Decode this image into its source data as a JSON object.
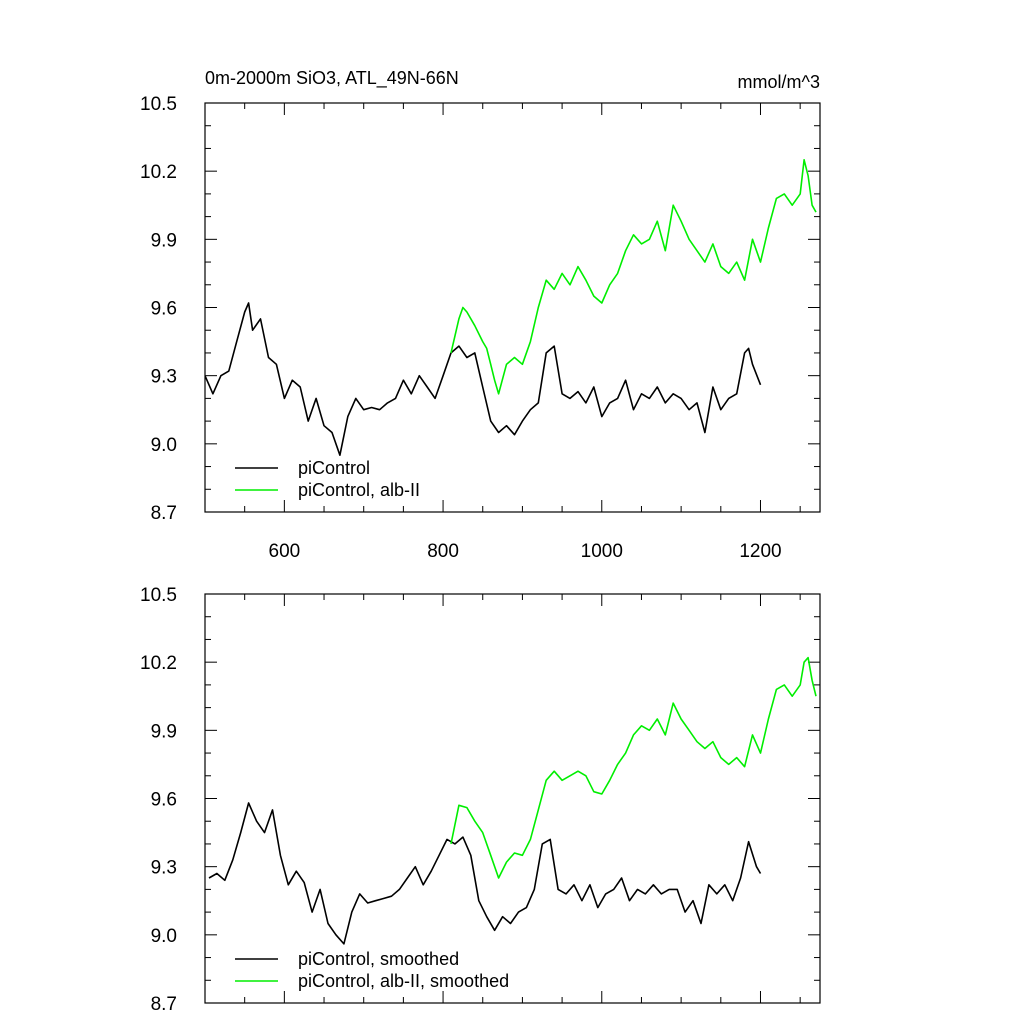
{
  "chart_data": [
    {
      "type": "line",
      "title": "0m-2000m SiO3, ATL_49N-66N",
      "units": "mmol/m^3",
      "xlim": [
        500,
        1275
      ],
      "ylim": [
        8.7,
        10.5
      ],
      "x_ticks": [
        600,
        800,
        1000,
        1200
      ],
      "x_tick_labels": [
        "600",
        "800",
        "1000",
        "1200"
      ],
      "y_ticks": [
        8.7,
        9.0,
        9.3,
        9.6,
        9.9,
        10.2,
        10.5
      ],
      "y_tick_labels": [
        "8.7",
        "9.0",
        "9.3",
        "9.6",
        "9.9",
        "10.2",
        "10.5"
      ],
      "legend_position": "bottom-left",
      "series": [
        {
          "name": "piControl",
          "color": "#000000",
          "x": [
            500,
            510,
            520,
            530,
            540,
            550,
            555,
            560,
            570,
            580,
            590,
            600,
            610,
            620,
            630,
            640,
            650,
            660,
            670,
            680,
            690,
            700,
            710,
            720,
            730,
            740,
            750,
            760,
            770,
            780,
            790,
            800,
            810,
            820,
            830,
            840,
            850,
            860,
            870,
            880,
            890,
            900,
            910,
            920,
            930,
            940,
            950,
            960,
            970,
            980,
            990,
            1000,
            1010,
            1020,
            1030,
            1040,
            1050,
            1060,
            1070,
            1080,
            1090,
            1100,
            1110,
            1120,
            1130,
            1140,
            1150,
            1160,
            1170,
            1180,
            1185,
            1190,
            1200
          ],
          "values": [
            9.3,
            9.22,
            9.3,
            9.32,
            9.45,
            9.58,
            9.62,
            9.5,
            9.55,
            9.38,
            9.35,
            9.2,
            9.28,
            9.25,
            9.1,
            9.2,
            9.08,
            9.05,
            8.95,
            9.12,
            9.2,
            9.15,
            9.16,
            9.15,
            9.18,
            9.2,
            9.28,
            9.22,
            9.3,
            9.25,
            9.2,
            9.3,
            9.4,
            9.43,
            9.38,
            9.4,
            9.25,
            9.1,
            9.05,
            9.08,
            9.04,
            9.1,
            9.15,
            9.18,
            9.4,
            9.43,
            9.22,
            9.2,
            9.23,
            9.18,
            9.25,
            9.12,
            9.18,
            9.2,
            9.28,
            9.15,
            9.22,
            9.2,
            9.25,
            9.18,
            9.22,
            9.2,
            9.15,
            9.18,
            9.05,
            9.25,
            9.15,
            9.2,
            9.22,
            9.4,
            9.42,
            9.35,
            9.26
          ]
        },
        {
          "name": "piControl, alb-II",
          "color": "#00ee00",
          "x": [
            810,
            820,
            825,
            830,
            840,
            850,
            855,
            860,
            865,
            870,
            880,
            890,
            900,
            910,
            920,
            930,
            940,
            950,
            960,
            970,
            980,
            990,
            1000,
            1010,
            1020,
            1030,
            1040,
            1050,
            1060,
            1070,
            1080,
            1090,
            1100,
            1110,
            1120,
            1130,
            1140,
            1150,
            1160,
            1170,
            1180,
            1190,
            1200,
            1210,
            1220,
            1230,
            1240,
            1250,
            1255,
            1260,
            1265,
            1270
          ],
          "values": [
            9.4,
            9.55,
            9.6,
            9.58,
            9.52,
            9.45,
            9.42,
            9.35,
            9.28,
            9.22,
            9.35,
            9.38,
            9.35,
            9.45,
            9.6,
            9.72,
            9.68,
            9.75,
            9.7,
            9.78,
            9.72,
            9.65,
            9.62,
            9.7,
            9.75,
            9.85,
            9.92,
            9.88,
            9.9,
            9.98,
            9.85,
            10.05,
            9.98,
            9.9,
            9.85,
            9.8,
            9.88,
            9.78,
            9.75,
            9.8,
            9.72,
            9.9,
            9.8,
            9.95,
            10.08,
            10.1,
            10.05,
            10.1,
            10.25,
            10.18,
            10.05,
            10.02
          ]
        }
      ]
    },
    {
      "type": "line",
      "xlim": [
        500,
        1275
      ],
      "ylim": [
        8.7,
        10.5
      ],
      "x_ticks": [
        600,
        800,
        1000,
        1200
      ],
      "y_ticks": [
        8.7,
        9.0,
        9.3,
        9.6,
        9.9,
        10.2,
        10.5
      ],
      "y_tick_labels": [
        "8.7",
        "9.0",
        "9.3",
        "9.6",
        "9.9",
        "10.2",
        "10.5"
      ],
      "legend_position": "bottom-left",
      "series": [
        {
          "name": "piControl, smoothed",
          "color": "#000000",
          "x": [
            505,
            515,
            525,
            535,
            545,
            555,
            565,
            575,
            585,
            595,
            605,
            615,
            625,
            635,
            645,
            655,
            665,
            675,
            685,
            695,
            705,
            715,
            725,
            735,
            745,
            755,
            765,
            775,
            785,
            795,
            805,
            815,
            825,
            835,
            845,
            855,
            865,
            875,
            885,
            895,
            905,
            915,
            925,
            935,
            945,
            955,
            965,
            975,
            985,
            995,
            1005,
            1015,
            1025,
            1035,
            1045,
            1055,
            1065,
            1075,
            1085,
            1095,
            1105,
            1115,
            1125,
            1135,
            1145,
            1155,
            1165,
            1175,
            1185,
            1195,
            1200
          ],
          "values": [
            9.25,
            9.27,
            9.24,
            9.33,
            9.45,
            9.58,
            9.5,
            9.45,
            9.55,
            9.35,
            9.22,
            9.28,
            9.23,
            9.1,
            9.2,
            9.05,
            9.0,
            8.96,
            9.1,
            9.18,
            9.14,
            9.15,
            9.16,
            9.17,
            9.2,
            9.25,
            9.3,
            9.22,
            9.28,
            9.35,
            9.42,
            9.4,
            9.43,
            9.35,
            9.15,
            9.08,
            9.02,
            9.08,
            9.05,
            9.1,
            9.12,
            9.2,
            9.4,
            9.42,
            9.2,
            9.18,
            9.22,
            9.15,
            9.22,
            9.12,
            9.18,
            9.2,
            9.25,
            9.15,
            9.2,
            9.18,
            9.22,
            9.18,
            9.2,
            9.2,
            9.1,
            9.15,
            9.05,
            9.22,
            9.18,
            9.22,
            9.15,
            9.25,
            9.41,
            9.3,
            9.27
          ]
        },
        {
          "name": "piControl, alb-II, smoothed",
          "color": "#00ee00",
          "x": [
            810,
            820,
            830,
            840,
            850,
            860,
            870,
            880,
            890,
            900,
            910,
            920,
            930,
            940,
            950,
            960,
            970,
            980,
            990,
            1000,
            1010,
            1020,
            1030,
            1040,
            1050,
            1060,
            1070,
            1080,
            1090,
            1100,
            1110,
            1120,
            1130,
            1140,
            1150,
            1160,
            1170,
            1180,
            1190,
            1200,
            1210,
            1220,
            1230,
            1240,
            1250,
            1255,
            1260,
            1265,
            1270
          ],
          "values": [
            9.4,
            9.57,
            9.56,
            9.5,
            9.45,
            9.35,
            9.25,
            9.32,
            9.36,
            9.35,
            9.42,
            9.55,
            9.68,
            9.72,
            9.68,
            9.7,
            9.72,
            9.7,
            9.63,
            9.62,
            9.68,
            9.75,
            9.8,
            9.88,
            9.92,
            9.9,
            9.95,
            9.88,
            10.02,
            9.95,
            9.9,
            9.85,
            9.82,
            9.85,
            9.78,
            9.75,
            9.78,
            9.74,
            9.88,
            9.8,
            9.95,
            10.08,
            10.1,
            10.05,
            10.1,
            10.2,
            10.22,
            10.12,
            10.05
          ]
        }
      ]
    }
  ]
}
